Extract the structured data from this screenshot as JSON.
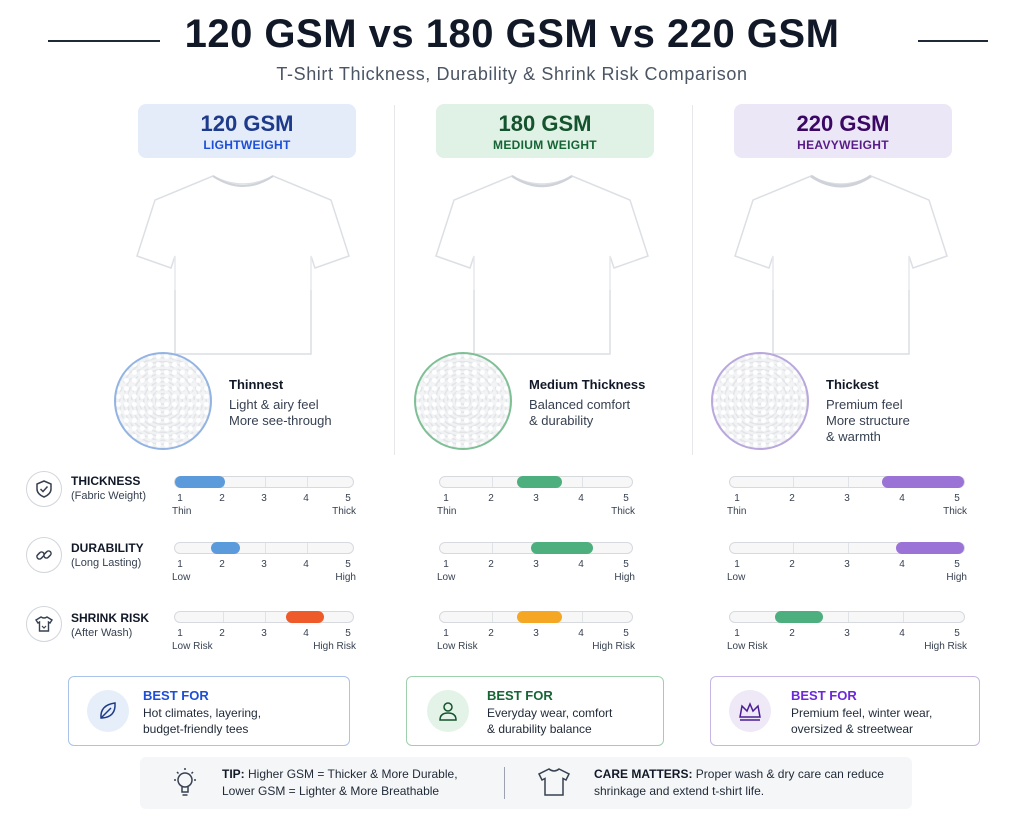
{
  "header": {
    "title": "120 GSM vs 180 GSM vs 220 GSM",
    "subtitle": "T-Shirt Thickness, Durability & Shrink Risk Comparison"
  },
  "colors": {
    "blue": "#5b9bdc",
    "green": "#4caf7d",
    "purple": "#9b72d6",
    "orange": "#f5a623",
    "red": "#ef5a2a"
  },
  "columns": [
    {
      "gsm": "120 GSM",
      "weight": "LIGHTWEIGHT",
      "fabric_title": "Thinnest",
      "fabric_lines": [
        "Light & airy feel",
        "More see-through"
      ],
      "best_for_label": "BEST FOR",
      "best_for_lines": [
        "Hot climates, layering,",
        "budget-friendly tees"
      ],
      "best_for_icon": "leaf-icon",
      "thickness_range": [
        1,
        2
      ],
      "durability_range": [
        1.75,
        2.35
      ],
      "shrink_range": [
        3.55,
        4.35
      ]
    },
    {
      "gsm": "180 GSM",
      "weight": "MEDIUM WEIGHT",
      "fabric_title": "Medium Thickness",
      "fabric_lines": [
        "Balanced comfort",
        "& durability"
      ],
      "best_for_label": "BEST FOR",
      "best_for_lines": [
        "Everyday wear, comfort",
        "& durability balance"
      ],
      "best_for_icon": "person-icon",
      "thickness_range": [
        2.6,
        3.5
      ],
      "durability_range": [
        2.9,
        4.2
      ],
      "shrink_range": [
        2.6,
        3.5
      ]
    },
    {
      "gsm": "220 GSM",
      "weight": "HEAVYWEIGHT",
      "fabric_title": "Thickest",
      "fabric_lines": [
        "Premium feel",
        "More structure",
        "& warmth"
      ],
      "best_for_label": "BEST FOR",
      "best_for_lines": [
        "Premium feel, winter wear,",
        "oversized & streetwear"
      ],
      "best_for_icon": "crown-icon",
      "thickness_range": [
        3.65,
        5
      ],
      "durability_range": [
        3.9,
        5
      ],
      "shrink_range": [
        1.7,
        2.5
      ]
    }
  ],
  "metrics": [
    {
      "name": "THICKNESS",
      "sub": "(Fabric Weight)",
      "low": "Thin",
      "high": "Thick",
      "icon": "shield-icon"
    },
    {
      "name": "DURABILITY",
      "sub": "(Long Lasting)",
      "low": "Low",
      "high": "High",
      "icon": "link-icon"
    },
    {
      "name": "SHRINK RISK",
      "sub": "(After Wash)",
      "low": "Low Risk",
      "high": "High Risk",
      "icon": "shirt-wash-icon"
    }
  ],
  "scale_numbers": [
    "1",
    "2",
    "3",
    "4",
    "5"
  ],
  "footer": {
    "tip_label": "TIP:",
    "tip_text_1": " Higher GSM = Thicker & More Durable,",
    "tip_text_2": "Lower GSM = Lighter & More Breathable",
    "care_label": "CARE MATTERS:",
    "care_text_1": " Proper wash & dry care can reduce",
    "care_text_2": "shrinkage and extend t-shirt life."
  }
}
